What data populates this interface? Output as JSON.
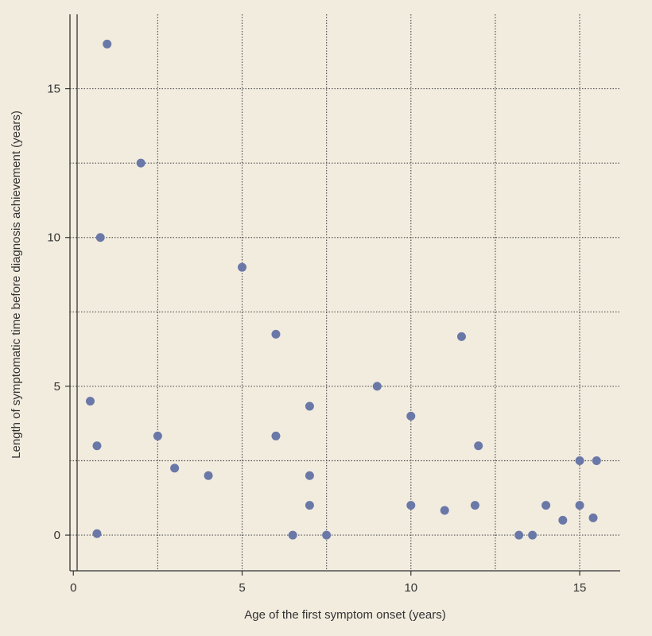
{
  "chart_data": {
    "type": "scatter",
    "title": "",
    "xlabel": "Age of the first symptom onset (years)",
    "ylabel": "Length of symptomatic time before diagnosis achievement (years)",
    "xlim": [
      -0.1,
      16.2
    ],
    "ylim": [
      -1.2,
      17.5
    ],
    "xticks": [
      0,
      5,
      10,
      15
    ],
    "yticks": [
      0,
      5,
      10,
      15
    ],
    "xgrid": [
      2.5,
      5,
      7.5,
      10,
      12.5,
      15
    ],
    "ygrid": [
      0,
      2.5,
      5,
      7.5,
      10,
      12.5,
      15
    ],
    "grid": true,
    "legend": "none",
    "series": [
      {
        "marker_color": "#6a78a8",
        "x": [
          1.0,
          2.0,
          0.8,
          5.0,
          0.5,
          0.7,
          0.7,
          2.5,
          3.0,
          4.0,
          6.0,
          6.0,
          6.5,
          7.0,
          7.0,
          7.0,
          7.5,
          9.0,
          10.0,
          10.0,
          11.0,
          11.5,
          12.0,
          11.9,
          13.2,
          13.6,
          14.0,
          14.5,
          15.0,
          15.0,
          15.4,
          15.5
        ],
        "y": [
          16.5,
          12.5,
          10.0,
          9.0,
          4.5,
          3.0,
          0.05,
          3.33,
          2.25,
          2.0,
          6.75,
          3.33,
          0.0,
          4.33,
          2.0,
          1.0,
          0.0,
          5.0,
          4.0,
          1.0,
          0.83,
          6.67,
          3.0,
          1.0,
          0.0,
          0.0,
          1.0,
          0.5,
          2.5,
          1.0,
          0.58,
          2.5
        ]
      }
    ]
  }
}
